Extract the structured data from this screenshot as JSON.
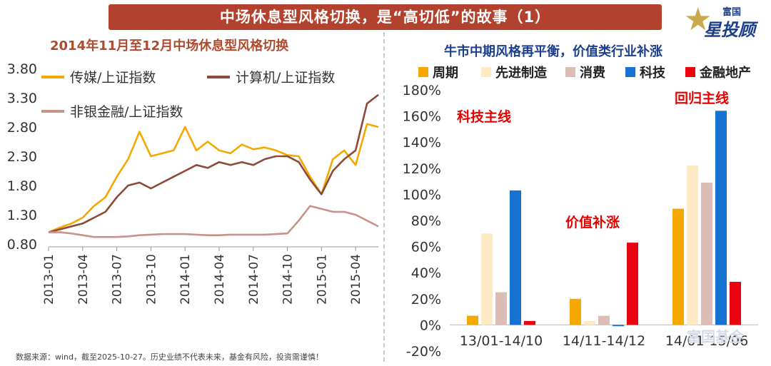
{
  "banner": "中场休息型风格切换，是“高切低”的故事（1）",
  "logo": {
    "top": "富国",
    "bottom": "星投顾"
  },
  "left_title": "2014年11月至12月中场休息型风格切换",
  "right_title": "牛市中期风格再平衡，价值类行业补涨",
  "footnote": "数据来源：wind，截至2025-10-27。历史业绩不代表未来，基金有风险，投资需谨慎！",
  "watermark": "富国基金",
  "colors": {
    "media": "#f6a700",
    "computer": "#8b4a3a",
    "finance": "#c8918a",
    "cycle": "#f6a700",
    "manufacturing": "#fde9c4",
    "consumer": "#dcbdb6",
    "tech": "#1673d2",
    "fin_re": "#e8050f",
    "annotation": "#e60000"
  },
  "chart_data": [
    {
      "type": "line",
      "title": "2014年11月至12月中场休息型风格切换",
      "yticks": [
        "0.80",
        "1.30",
        "1.80",
        "2.30",
        "2.80",
        "3.30",
        "3.80"
      ],
      "ylim": [
        0.8,
        3.8
      ],
      "xticks": [
        "2013-01",
        "2013-04",
        "2013-07",
        "2013-10",
        "2014-01",
        "2014-04",
        "2014-07",
        "2014-10",
        "2015-01",
        "2015-04"
      ],
      "x": [
        "2013-01",
        "2013-02",
        "2013-03",
        "2013-04",
        "2013-05",
        "2013-06",
        "2013-07",
        "2013-08",
        "2013-09",
        "2013-10",
        "2013-11",
        "2013-12",
        "2014-01",
        "2014-02",
        "2014-03",
        "2014-04",
        "2014-05",
        "2014-06",
        "2014-07",
        "2014-08",
        "2014-09",
        "2014-10",
        "2014-11",
        "2014-12",
        "2015-01",
        "2015-02",
        "2015-03",
        "2015-04",
        "2015-05",
        "2015-06"
      ],
      "legend_position": "top-left",
      "series": [
        {
          "name": "传媒/上证指数",
          "color": "#f6a700",
          "values": [
            1.0,
            1.08,
            1.15,
            1.25,
            1.45,
            1.6,
            1.95,
            2.25,
            2.72,
            2.3,
            2.35,
            2.4,
            2.8,
            2.4,
            2.55,
            2.4,
            2.35,
            2.5,
            2.42,
            2.45,
            2.4,
            2.32,
            2.3,
            1.95,
            1.65,
            2.25,
            2.4,
            2.15,
            2.85,
            2.8
          ]
        },
        {
          "name": "计算机/上证指数",
          "color": "#8b4a3a",
          "values": [
            1.0,
            1.05,
            1.1,
            1.15,
            1.25,
            1.35,
            1.6,
            1.8,
            1.85,
            1.75,
            1.85,
            1.95,
            2.05,
            2.15,
            2.1,
            2.2,
            2.15,
            2.2,
            2.15,
            2.25,
            2.3,
            2.3,
            2.2,
            1.9,
            1.65,
            2.05,
            2.25,
            2.4,
            3.2,
            3.35
          ]
        },
        {
          "name": "非银金融/上证指数",
          "color": "#c8918a",
          "values": [
            1.0,
            1.0,
            0.98,
            0.95,
            0.92,
            0.92,
            0.92,
            0.93,
            0.95,
            0.96,
            0.97,
            0.97,
            0.97,
            0.96,
            0.95,
            0.95,
            0.96,
            0.96,
            0.96,
            0.96,
            0.97,
            0.98,
            1.2,
            1.45,
            1.4,
            1.35,
            1.35,
            1.3,
            1.2,
            1.1
          ]
        }
      ]
    },
    {
      "type": "bar",
      "title": "牛市中期风格再平衡，价值类行业补涨",
      "categories": [
        "13/01-14/10",
        "14/11-14/12",
        "14/01-15/06"
      ],
      "yticks": [
        "-20%",
        "0%",
        "20%",
        "40%",
        "60%",
        "80%",
        "100%",
        "120%",
        "140%",
        "160%",
        "180%"
      ],
      "ylim": [
        -20,
        180
      ],
      "legend_position": "top",
      "series": [
        {
          "name": "周期",
          "color": "#f6a700",
          "values": [
            7,
            20,
            89
          ]
        },
        {
          "name": "先进制造",
          "color": "#fde9c4",
          "values": [
            70,
            3,
            122
          ]
        },
        {
          "name": "消费",
          "color": "#dcbdb6",
          "values": [
            25,
            7,
            109
          ]
        },
        {
          "name": "科技",
          "color": "#1673d2",
          "values": [
            103,
            -1,
            164
          ]
        },
        {
          "name": "金融地产",
          "color": "#e8050f",
          "values": [
            3,
            63,
            33
          ]
        }
      ],
      "annotations": [
        "科技主线",
        "价值补涨",
        "回归主线"
      ]
    }
  ]
}
